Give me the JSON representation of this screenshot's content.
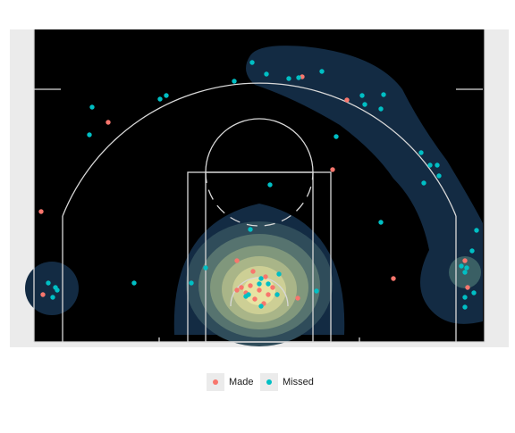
{
  "chart_data": {
    "type": "scatter",
    "xlim": [
      0,
      504
    ],
    "ylim": [
      0,
      350
    ],
    "series": [
      {
        "name": "Made",
        "color": "#F8766D",
        "x": [
          300,
          350,
          83,
          334,
          8,
          10,
          227,
          245,
          259,
          232,
          227,
          242,
          252,
          262,
          247,
          257,
          272,
          295,
          402,
          482,
          485,
          237,
          267
        ],
        "values": [
          297,
          271,
          246,
          193,
          146,
          53,
          91,
          79,
          73,
          61,
          58,
          63,
          58,
          53,
          48,
          43,
          53,
          49,
          71,
          91,
          61,
          55,
          61
        ]
      },
      {
        "name": "Missed",
        "color": "#00BFC4",
        "x": [
          244,
          260,
          224,
          285,
          296,
          322,
          367,
          391,
          370,
          388,
          141,
          148,
          65,
          62,
          338,
          433,
          443,
          451,
          453,
          436,
          264,
          388,
          495,
          242,
          490,
          478,
          482,
          484,
          192,
          176,
          112,
          16,
          24,
          26,
          21,
          274,
          254,
          252,
          262,
          272,
          240,
          237,
          254,
          316,
          482,
          492,
          482
        ],
        "values": [
          313,
          300,
          292,
          295,
          296,
          303,
          276,
          277,
          266,
          261,
          272,
          276,
          263,
          232,
          230,
          212,
          198,
          198,
          186,
          178,
          176,
          134,
          125,
          126,
          102,
          85,
          78,
          83,
          83,
          66,
          66,
          66,
          61,
          58,
          50,
          76,
          71,
          65,
          65,
          53,
          53,
          51,
          40,
          57,
          50,
          55,
          39
        ]
      }
    ]
  }
}
